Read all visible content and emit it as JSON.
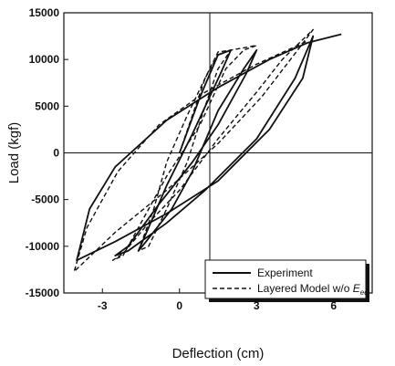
{
  "chart_data": {
    "type": "line",
    "xlabel": "Deflection (cm)",
    "ylabel": "Load (kgf)",
    "xlim": [
      -4.5,
      7.5
    ],
    "ylim": [
      -15000,
      15000
    ],
    "x_ticks": [
      -3,
      0,
      3,
      6
    ],
    "y_ticks": [
      -15000,
      -10000,
      -5000,
      0,
      5000,
      10000,
      15000
    ],
    "grid": false,
    "zero_lines": true,
    "legend_position": "bottom-right",
    "series": [
      {
        "name": "Experiment",
        "style": "solid",
        "segments": [
          [
            [
              0,
              0
            ],
            [
              0.8,
              6000
            ],
            [
              1.5,
              10500
            ],
            [
              2.0,
              11000
            ],
            [
              1.6,
              8500
            ],
            [
              0.5,
              2000
            ],
            [
              -0.5,
              -3500
            ],
            [
              -1.2,
              -8000
            ],
            [
              -1.6,
              -10500
            ],
            [
              -1.3,
              -9500
            ],
            [
              -0.3,
              -6000
            ],
            [
              0.5,
              -2000
            ],
            [
              1.5,
              4500
            ],
            [
              2.5,
              9000
            ],
            [
              3.0,
              11000
            ],
            [
              2.6,
              8500
            ],
            [
              1.5,
              3000
            ],
            [
              0.5,
              -1000
            ],
            [
              -0.8,
              -5500
            ],
            [
              -2.0,
              -10000
            ],
            [
              -2.5,
              -11000
            ],
            [
              -2.0,
              -10500
            ],
            [
              -0.5,
              -7500
            ],
            [
              1.0,
              -4000
            ],
            [
              3.0,
              1500
            ],
            [
              4.5,
              8000
            ],
            [
              5.2,
              12500
            ],
            [
              4.8,
              8000
            ],
            [
              3.5,
              2500
            ],
            [
              1.5,
              -3000
            ],
            [
              -0.5,
              -6500
            ],
            [
              -2.5,
              -9500
            ],
            [
              -4.0,
              -11500
            ],
            [
              -3.5,
              -6000
            ],
            [
              -2.5,
              -1500
            ],
            [
              -0.5,
              3500
            ],
            [
              1.5,
              7000
            ],
            [
              3.5,
              10000
            ],
            [
              5.0,
              11800
            ],
            [
              6.3,
              12700
            ]
          ]
        ]
      },
      {
        "name": "Layered Model w/o E_eq",
        "style": "dashed",
        "segments": [
          [
            [
              0,
              0
            ],
            [
              0.5,
              4000
            ],
            [
              1.0,
              8000
            ],
            [
              1.5,
              10500
            ],
            [
              2.0,
              11000
            ],
            [
              1.5,
              10800
            ],
            [
              1.0,
              8000
            ],
            [
              0.3,
              4000
            ],
            [
              -0.5,
              -1000
            ],
            [
              -1.0,
              -6000
            ],
            [
              -1.6,
              -10500
            ],
            [
              -1.2,
              -10000
            ],
            [
              -0.5,
              -6000
            ],
            [
              0.3,
              -1000
            ],
            [
              1.0,
              5000
            ],
            [
              1.5,
              9000
            ],
            [
              2.0,
              11000
            ],
            [
              3.0,
              11500
            ],
            [
              2.5,
              11000
            ],
            [
              1.8,
              9000
            ],
            [
              0.8,
              3000
            ],
            [
              -0.5,
              -2500
            ],
            [
              -1.5,
              -7500
            ],
            [
              -2.2,
              -11000
            ],
            [
              -2.6,
              -11500
            ],
            [
              -2.2,
              -10800
            ],
            [
              -1.2,
              -7500
            ],
            [
              0,
              -4000
            ],
            [
              1.5,
              1500
            ],
            [
              3.0,
              6500
            ],
            [
              4.0,
              10000
            ],
            [
              5.2,
              13200
            ],
            [
              4.6,
              11000
            ],
            [
              3.2,
              6000
            ],
            [
              1.5,
              1000
            ],
            [
              -0.5,
              -4000
            ],
            [
              -2.5,
              -8500
            ],
            [
              -4.1,
              -12700
            ],
            [
              -3.6,
              -8000
            ],
            [
              -2.4,
              -2000
            ],
            [
              -0.8,
              3000
            ],
            [
              1.0,
              6500
            ],
            [
              3.0,
              9500
            ],
            [
              5.0,
              12000
            ]
          ]
        ]
      }
    ]
  }
}
